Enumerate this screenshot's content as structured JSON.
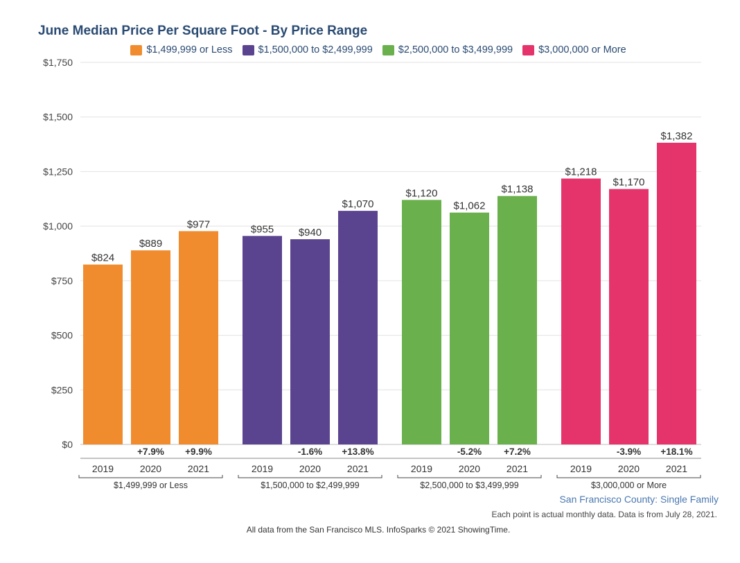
{
  "chart_data": {
    "type": "bar",
    "title": "June Median Price Per Square Foot - By Price Range",
    "xlabel": "",
    "ylabel": "",
    "ylim": [
      0,
      1750
    ],
    "yticks": [
      0,
      250,
      500,
      750,
      1000,
      1250,
      1500,
      1750
    ],
    "ytick_labels": [
      "$0",
      "$250",
      "$500",
      "$750",
      "$1,000",
      "$1,250",
      "$1,500",
      "$1,750"
    ],
    "grid": true,
    "legend_position": "top-center",
    "categories": [
      "2019",
      "2020",
      "2021"
    ],
    "series": [
      {
        "name": "$1,499,999 or Less",
        "color": "#f08c2e",
        "values": [
          824,
          889,
          977
        ],
        "labels": [
          "$824",
          "$889",
          "$977"
        ],
        "changes": [
          "",
          "+7.9%",
          "+9.9%"
        ]
      },
      {
        "name": "$1,500,000 to $2,499,999",
        "color": "#5b448f",
        "values": [
          955,
          940,
          1070
        ],
        "labels": [
          "$955",
          "$940",
          "$1,070"
        ],
        "changes": [
          "",
          "-1.6%",
          "+13.8%"
        ]
      },
      {
        "name": "$2,500,000 to $3,499,999",
        "color": "#6ab04c",
        "values": [
          1120,
          1062,
          1138
        ],
        "labels": [
          "$1,120",
          "$1,062",
          "$1,138"
        ],
        "changes": [
          "",
          "-5.2%",
          "+7.2%"
        ]
      },
      {
        "name": "$3,000,000 or More",
        "color": "#e5336b",
        "values": [
          1218,
          1170,
          1382
        ],
        "labels": [
          "$1,218",
          "$1,170",
          "$1,382"
        ],
        "changes": [
          "",
          "-3.9%",
          "+18.1%"
        ]
      }
    ]
  },
  "footer": {
    "region": "San Francisco County: Single Family",
    "note": "Each point is actual monthly data. Data is from July 28, 2021.",
    "source": "All data from the San Francisco MLS. InfoSparks © 2021 ShowingTime."
  }
}
